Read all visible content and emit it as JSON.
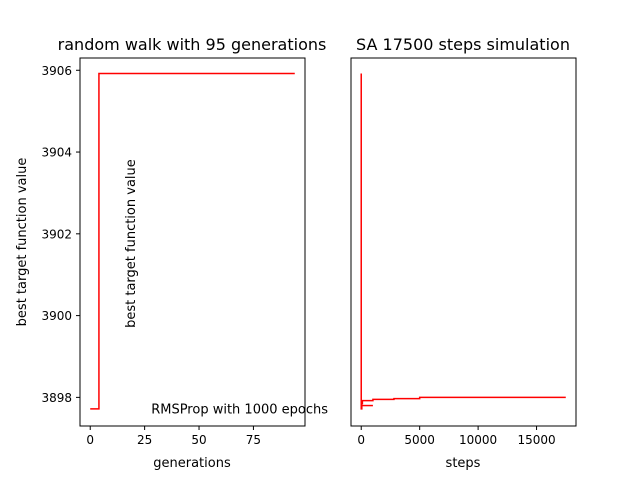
{
  "figure": {
    "background": "#ffffff",
    "line_color": "#ff0000"
  },
  "chart_data": [
    {
      "type": "line",
      "title": "random walk with 95 generations",
      "xlabel": "generations",
      "ylabel": "best target function value",
      "xlim": [
        -4.7,
        98.7
      ],
      "ylim": [
        3897.3,
        3906.3
      ],
      "xticks": [
        0,
        25,
        50,
        75
      ],
      "xtick_labels": [
        "0",
        "25",
        "50",
        "75"
      ],
      "yticks": [
        3898,
        3900,
        3902,
        3904,
        3906
      ],
      "ytick_labels": [
        "3898",
        "3900",
        "3902",
        "3904",
        "3906"
      ],
      "grid": false,
      "series": [
        {
          "x": [
            0,
            1,
            2,
            3,
            3,
            4,
            4,
            94
          ],
          "y": [
            3897.72,
            3897.72,
            3897.72,
            3897.72,
            3897.72,
            3897.72,
            3905.92,
            3905.92
          ]
        }
      ],
      "annotations": [
        {
          "text": "best target function value",
          "x": 20.5,
          "y": 3899.7,
          "rotation": 90,
          "anchor": "start"
        },
        {
          "text": "RMSProp with 1000 epochs",
          "x": 28,
          "y": 3897.6,
          "rotation": 0,
          "anchor": "start"
        }
      ]
    },
    {
      "type": "line",
      "title": "SA 17500 steps simulation",
      "xlabel": "steps",
      "ylabel": "",
      "xlim": [
        -875,
        18375
      ],
      "ylim": [
        3897.3,
        3906.3
      ],
      "xticks": [
        0,
        5000,
        10000,
        15000
      ],
      "xtick_labels": [
        "0",
        "5000",
        "10000",
        "15000"
      ],
      "yticks": [],
      "ytick_labels": [],
      "grid": false,
      "series": [
        {
          "x": [
            0,
            0,
            50,
            50,
            100,
            100,
            1000,
            1000,
            2800,
            2800,
            5000,
            5000,
            17500
          ],
          "y": [
            3905.92,
            3897.72,
            3897.72,
            3897.85,
            3897.85,
            3897.92,
            3897.92,
            3897.95,
            3897.95,
            3897.97,
            3897.97,
            3898.0,
            3898.0
          ]
        },
        {
          "x": [
            0,
            1000
          ],
          "y": [
            3897.8,
            3897.8
          ]
        }
      ],
      "annotations": []
    }
  ]
}
